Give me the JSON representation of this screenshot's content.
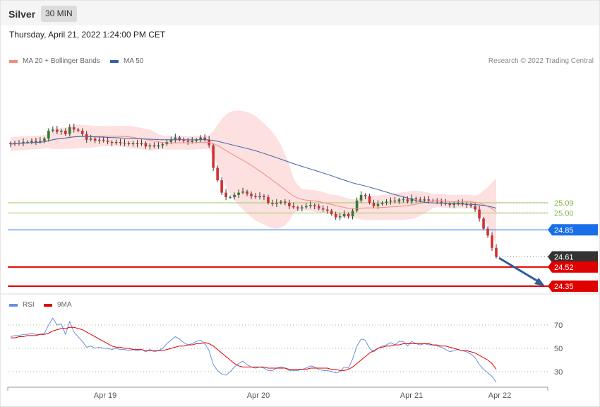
{
  "header": {
    "instrument": "Silver",
    "timeframe": "30 MIN",
    "datetime": "Thursday, April 21, 2022 1:24:00 PM CET",
    "credit": "Research © 2022 Trading Central"
  },
  "legend": {
    "ma20": "MA 20 + Bollinger Bands",
    "ma50": "MA 50",
    "rsi": "RSI",
    "rsi_ma": "9MA"
  },
  "colors": {
    "up": "#2e7d32",
    "down": "#d32f2f",
    "band_fill": "#fde0e0",
    "ma20": "#f28b82",
    "ma50": "#3b5fa8",
    "resistance": "#9ccc65",
    "pivot": "#1a6fe8",
    "support": "#e00000",
    "last": "#333333",
    "rsi": "#6a8fe0",
    "rsi_ma": "#e00000",
    "arrow": "#2e5d9a"
  },
  "chart_data": [
    {
      "type": "candlestick",
      "x_labels": [
        "Apr 19",
        "Apr 20",
        "Apr 21",
        "Apr 22"
      ],
      "ylim": [
        24.2,
        25.8
      ],
      "grid": false,
      "legend_position": "top-left",
      "levels": [
        {
          "label": "25.09",
          "value": 25.09,
          "kind": "resistance"
        },
        {
          "label": "25.00",
          "value": 25.0,
          "kind": "resistance"
        },
        {
          "label": "24.85",
          "value": 24.85,
          "kind": "pivot"
        },
        {
          "label": "24.61",
          "value": 24.61,
          "kind": "last"
        },
        {
          "label": "24.52",
          "value": 24.52,
          "kind": "support"
        },
        {
          "label": "24.35",
          "value": 24.35,
          "kind": "support"
        }
      ],
      "series": [
        {
          "name": "MA 20 + Bollinger Bands"
        },
        {
          "name": "MA 50"
        }
      ],
      "close": [
        25.61,
        25.62,
        25.62,
        25.63,
        25.63,
        25.64,
        25.63,
        25.64,
        25.66,
        25.73,
        25.74,
        25.72,
        25.73,
        25.7,
        25.76,
        25.74,
        25.73,
        25.7,
        25.65,
        25.66,
        25.64,
        25.65,
        25.64,
        25.63,
        25.62,
        25.63,
        25.62,
        25.62,
        25.61,
        25.62,
        25.61,
        25.62,
        25.59,
        25.6,
        25.59,
        25.6,
        25.61,
        25.63,
        25.65,
        25.67,
        25.65,
        25.64,
        25.63,
        25.64,
        25.65,
        25.67,
        25.65,
        25.6,
        25.4,
        25.29,
        25.18,
        25.14,
        25.14,
        25.16,
        25.18,
        25.19,
        25.17,
        25.15,
        25.14,
        25.15,
        25.14,
        25.09,
        25.08,
        25.09,
        25.1,
        25.09,
        25.06,
        25.05,
        25.04,
        25.05,
        25.06,
        25.07,
        25.06,
        25.04,
        25.03,
        25.02,
        24.99,
        24.96,
        24.97,
        24.99,
        24.97,
        25.02,
        25.11,
        25.16,
        25.15,
        25.09,
        25.06,
        25.08,
        25.09,
        25.1,
        25.11,
        25.1,
        25.12,
        25.12,
        25.1,
        25.13,
        25.12,
        25.11,
        25.12,
        25.11,
        25.11,
        25.1,
        25.09,
        25.08,
        25.07,
        25.08,
        25.09,
        25.08,
        25.07,
        25.06,
        25.03,
        24.95,
        24.86,
        24.8,
        24.69,
        24.61
      ],
      "rsi": {
        "ylim": [
          20,
          80
        ],
        "ticks": [
          70,
          50,
          30
        ],
        "values": [
          60,
          61,
          61,
          62,
          62,
          63,
          62,
          62,
          63,
          70,
          76,
          70,
          71,
          62,
          73,
          64,
          60,
          56,
          51,
          52,
          50,
          51,
          50,
          50,
          49,
          50,
          49,
          49,
          48,
          49,
          48,
          49,
          47,
          49,
          47,
          48,
          50,
          54,
          57,
          60,
          58,
          55,
          53,
          54,
          56,
          57,
          54,
          48,
          36,
          31,
          28,
          27,
          30,
          34,
          37,
          39,
          36,
          34,
          33,
          34,
          33,
          31,
          31,
          33,
          34,
          33,
          31,
          31,
          31,
          32,
          33,
          35,
          34,
          32,
          31,
          31,
          30,
          29,
          30,
          34,
          33,
          41,
          52,
          58,
          57,
          50,
          47,
          50,
          52,
          53,
          55,
          53,
          56,
          56,
          52,
          56,
          54,
          53,
          54,
          53,
          53,
          52,
          51,
          49,
          47,
          48,
          49,
          48,
          47,
          45,
          42,
          36,
          32,
          29,
          26,
          21
        ],
        "ma9": [
          59,
          59,
          60,
          60,
          61,
          61,
          61,
          62,
          62,
          63,
          65,
          66,
          67,
          67,
          68,
          68,
          67,
          66,
          64,
          62,
          60,
          58,
          56,
          54,
          52,
          51,
          51,
          50,
          50,
          49,
          49,
          49,
          48,
          48,
          48,
          48,
          48,
          49,
          50,
          51,
          52,
          52,
          53,
          53,
          54,
          54,
          55,
          54,
          52,
          49,
          46,
          43,
          40,
          37,
          35,
          34,
          34,
          34,
          34,
          34,
          34,
          33,
          33,
          33,
          33,
          33,
          32,
          32,
          32,
          32,
          32,
          33,
          33,
          33,
          33,
          33,
          32,
          32,
          31,
          31,
          32,
          34,
          37,
          40,
          43,
          46,
          48,
          50,
          51,
          52,
          52,
          53,
          53,
          54,
          54,
          54,
          54,
          54,
          54,
          54,
          53,
          53,
          52,
          52,
          51,
          50,
          49,
          48,
          48,
          47,
          46,
          44,
          42,
          40,
          37,
          32
        ]
      }
    }
  ]
}
